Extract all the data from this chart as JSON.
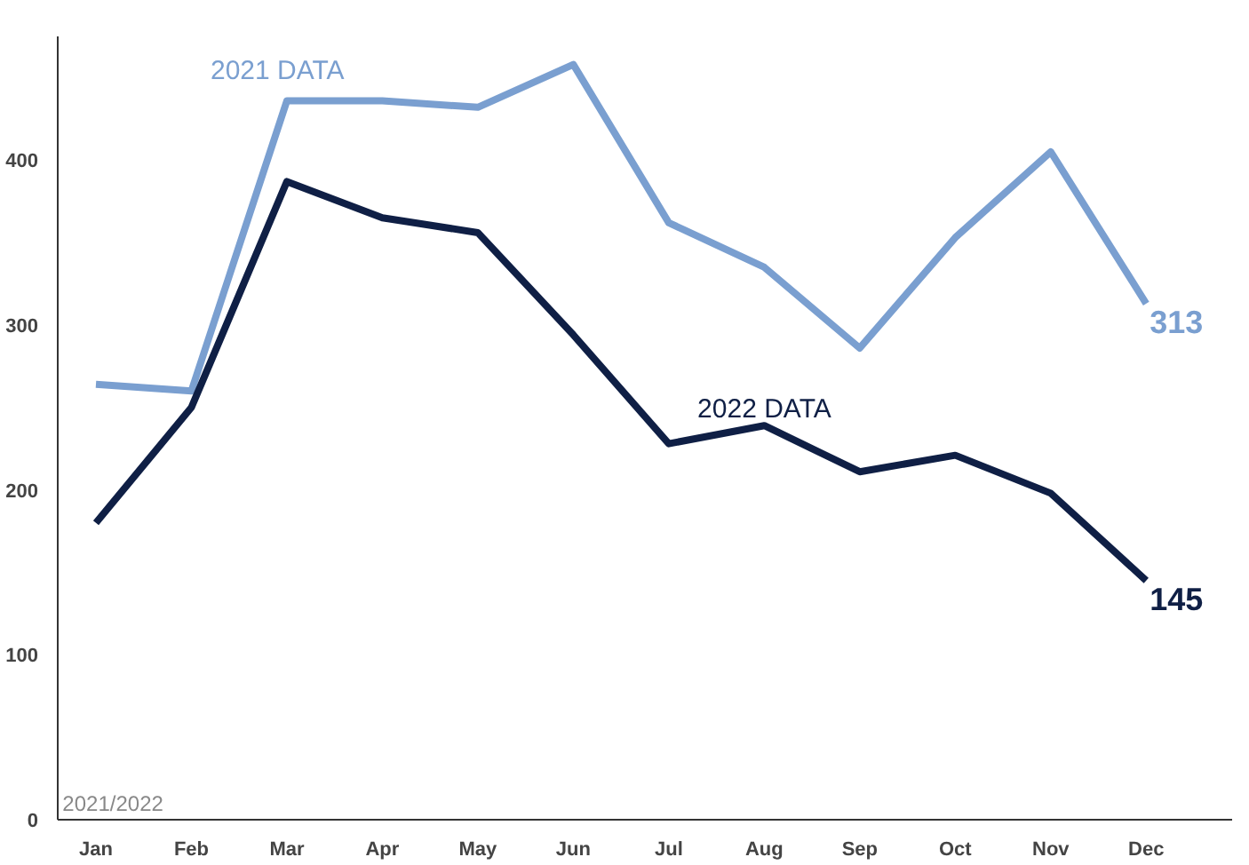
{
  "chart_data": {
    "type": "line",
    "categories": [
      "Jan",
      "Feb",
      "Mar",
      "Apr",
      "May",
      "Jun",
      "Jul",
      "Aug",
      "Sep",
      "Oct",
      "Nov",
      "Dec"
    ],
    "series": [
      {
        "name": "2021 DATA",
        "color": "#7a9fd0",
        "values": [
          264,
          260,
          436,
          436,
          432,
          458,
          362,
          335,
          286,
          353,
          405,
          313
        ],
        "value_labels": [
          null,
          null,
          null,
          null,
          null,
          null,
          null,
          null,
          null,
          null,
          null,
          "313"
        ]
      },
      {
        "name": "2022 DATA",
        "color": "#0f1f45",
        "values": [
          180,
          250,
          387,
          365,
          356,
          294,
          228,
          239,
          211,
          221,
          198,
          145
        ],
        "value_labels": [
          null,
          null,
          null,
          null,
          null,
          null,
          null,
          null,
          null,
          null,
          null,
          "145"
        ]
      }
    ],
    "ylim": [
      0,
      475
    ],
    "yticks": [
      0,
      100,
      200,
      300,
      400
    ],
    "grid": false,
    "marker": "none",
    "line_style": "solid",
    "annotations": [
      "2021/2022"
    ]
  }
}
